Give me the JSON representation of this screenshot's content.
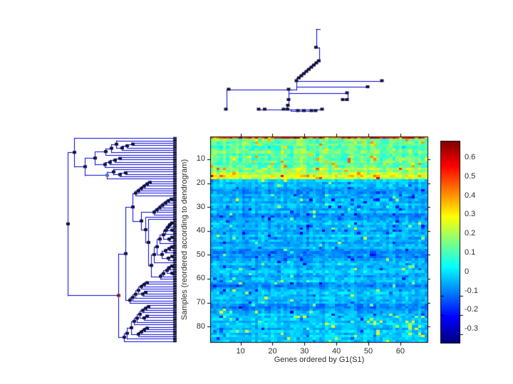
{
  "figure": {
    "background": "#ffffff"
  },
  "colors": {
    "dendro_line": "#0000dd",
    "dendro_marker": "#10103a",
    "axis": "#000000",
    "text": "#2e2e2e",
    "colorbar_top": "#7f0000",
    "colorbar_bottom": "#00008f"
  },
  "chart_data": {
    "type": "heatmap",
    "xlabel": "Genes ordered by G1(S1)",
    "ylabel": "Samples (reordered according to dendrogram)",
    "x_ticks": [
      10,
      20,
      30,
      40,
      50,
      60
    ],
    "y_ticks": [
      10,
      20,
      30,
      40,
      50,
      60,
      70,
      80
    ],
    "n_cols": 68,
    "n_rows": 86,
    "colormap": "jet",
    "value_range": [
      -0.37,
      0.69
    ],
    "colorbar_ticks": [
      0.6,
      0.5,
      0.4,
      0.3,
      0.2,
      0.1,
      0,
      -0.1,
      -0.2,
      -0.3
    ],
    "heatmap_generator": {
      "seed": 42,
      "warm_rows": 18,
      "row_means": [
        0.5,
        0.14,
        0.12,
        0.15,
        0.1,
        0.13,
        0.16,
        0.11,
        0.14,
        0.12,
        0.15,
        0.11,
        0.13,
        0.2,
        0.16,
        0.22,
        0.3,
        0.24,
        -0.02,
        -0.05,
        -0.03,
        -0.06,
        -0.09,
        -0.08,
        -0.05,
        -0.07,
        -0.04,
        -0.06,
        -0.03,
        -0.05,
        -0.08,
        -0.04,
        -0.09,
        -0.1,
        -0.07,
        -0.05,
        -0.03,
        -0.06,
        -0.04,
        -0.07,
        -0.05,
        -0.02,
        -0.06,
        -0.04,
        -0.08,
        -0.05,
        -0.03,
        -0.09,
        -0.11,
        -0.08,
        -0.1,
        -0.07,
        -0.05,
        -0.03,
        -0.06,
        -0.04,
        -0.02,
        -0.05,
        -0.07,
        -0.04,
        -0.03,
        -0.08,
        -0.1,
        -0.07,
        -0.04,
        -0.02,
        -0.05,
        -0.03,
        -0.06,
        -0.04,
        -0.09,
        -0.11,
        -0.08,
        -0.06,
        -0.03,
        -0.05,
        -0.02,
        -0.04,
        -0.01,
        -0.03,
        -0.05,
        -0.02,
        -0.04,
        -0.01,
        -0.03,
        -0.02
      ],
      "row1_sd": 0.09,
      "row_sd_warm": 0.06,
      "row_sd_cool": 0.045,
      "col_variation_warm": 0.1,
      "col_variation_cool": 0.04,
      "spike_prob_warm": 0.05,
      "spike_prob_cool": 0.02,
      "dark_prob_cool": 0.03,
      "spike_prob_bottom_right": 0.1
    },
    "dendrogram_top": {
      "segments": [
        [
          443.5,
          40.5,
          449,
          40.5
        ],
        [
          443.5,
          40.5,
          443.5,
          66.5
        ],
        [
          443.5,
          66.5,
          447.5,
          66.5
        ],
        [
          447.5,
          66.5,
          447.5,
          85.5
        ],
        [
          444,
          85.5,
          447.5,
          85.5
        ],
        [
          444,
          85.5,
          444,
          88.5
        ],
        [
          440.5,
          88.5,
          444,
          88.5
        ],
        [
          440.5,
          88.5,
          440.5,
          91.5
        ],
        [
          437,
          91.5,
          440.5,
          91.5
        ],
        [
          437,
          91.5,
          437,
          94.5
        ],
        [
          433.5,
          94.5,
          437,
          94.5
        ],
        [
          433.5,
          94.5,
          433.5,
          97.5
        ],
        [
          430,
          97.5,
          433.5,
          97.5
        ],
        [
          430,
          97.5,
          430,
          100.5
        ],
        [
          426.5,
          100.5,
          430,
          100.5
        ],
        [
          426.5,
          100.5,
          426.5,
          103.5
        ],
        [
          423,
          103.5,
          426.5,
          103.5
        ],
        [
          423,
          103.5,
          423,
          106.5
        ],
        [
          419.5,
          106.5,
          423,
          106.5
        ],
        [
          419.5,
          106.5,
          419.5,
          109.5
        ],
        [
          416,
          109.5,
          419.5,
          109.5
        ],
        [
          416,
          109.5,
          416,
          113.5
        ],
        [
          416,
          113.5,
          537,
          113.5
        ],
        [
          416,
          113.5,
          416,
          122
        ],
        [
          416,
          122,
          517,
          122
        ],
        [
          416,
          122,
          416,
          125.5
        ],
        [
          318,
          125.5,
          416,
          125.5
        ],
        [
          318,
          125.5,
          318,
          153.5
        ],
        [
          405,
          125.5,
          405,
          148
        ],
        [
          405,
          130.5,
          488,
          130.5
        ],
        [
          488,
          130.5,
          488,
          140
        ],
        [
          480,
          140,
          488,
          140
        ],
        [
          403,
          148,
          405,
          148
        ],
        [
          403,
          148,
          403,
          153.5
        ],
        [
          363,
          153.5,
          453,
          153.5
        ],
        [
          408,
          153.5,
          408,
          155.5
        ],
        [
          408,
          155.5,
          443,
          155.5
        ]
      ],
      "markers": [
        [
          443.5,
          66.5
        ],
        [
          447.5,
          85.5
        ],
        [
          444,
          88.5
        ],
        [
          440.5,
          91.5
        ],
        [
          437,
          94.5
        ],
        [
          433.5,
          97.5
        ],
        [
          430,
          100.5
        ],
        [
          426.5,
          103.5
        ],
        [
          423,
          106.5
        ],
        [
          419.5,
          109.5
        ],
        [
          416,
          113.5
        ],
        [
          536,
          113.5
        ],
        [
          516,
          122
        ],
        [
          405,
          125.5
        ],
        [
          321,
          125.5
        ],
        [
          317,
          153.5
        ],
        [
          487,
          130.5
        ],
        [
          487,
          140
        ],
        [
          481,
          140
        ],
        [
          405,
          140
        ],
        [
          404,
          148
        ],
        [
          363,
          153.5
        ],
        [
          371.5,
          153.5
        ],
        [
          398,
          153.5
        ],
        [
          403.5,
          153.5
        ],
        [
          418,
          155.5
        ],
        [
          426.5,
          155.5
        ],
        [
          437,
          155.5
        ],
        [
          443,
          155.5
        ],
        [
          452,
          153.5
        ]
      ]
    },
    "dendrogram_left": {
      "leaf_x": 244,
      "marker_colors": {
        "bb4": "#8a1a10",
        "c4": "#3a7ad0"
      },
      "merges": [
        [
          "a1",
          186,
          "L3",
          "L4"
        ],
        [
          "a2",
          178,
          "a1",
          "L5"
        ],
        [
          "a3",
          171,
          "a2",
          "L6"
        ],
        [
          "a4",
          163,
          "a3",
          "L2"
        ],
        [
          "a5",
          156,
          "a4",
          "L7"
        ],
        [
          "a6",
          148,
          "a5",
          "L8"
        ],
        [
          "b1",
          168,
          "L9",
          "L10"
        ],
        [
          "b2",
          161,
          "b1",
          "L11"
        ],
        [
          "b3",
          154,
          "b2",
          "L12"
        ],
        [
          "b4",
          147,
          "b3",
          "L13"
        ],
        [
          "c1",
          176,
          "L15",
          "L16"
        ],
        [
          "c2",
          168,
          "c1",
          "L17"
        ],
        [
          "c3",
          159,
          "c2",
          "L14"
        ],
        [
          "c4",
          150,
          "c3",
          "L18"
        ],
        [
          "a7",
          133,
          "a6",
          "b4"
        ],
        [
          "a8",
          119,
          "a7",
          "c4"
        ],
        [
          "a9",
          104,
          "a8",
          "L1"
        ],
        [
          "e1",
          210,
          "L19",
          "L20"
        ],
        [
          "e2",
          206,
          "e1",
          "L21"
        ],
        [
          "e3",
          202,
          "e2",
          "L22"
        ],
        [
          "e4",
          198,
          "e3",
          "L23"
        ],
        [
          "e5",
          194,
          "e4",
          "L24"
        ],
        [
          "e6",
          190,
          "e5",
          "L25"
        ],
        [
          "t1",
          240,
          "L26",
          "L27"
        ],
        [
          "t2",
          236,
          "t1",
          "L28"
        ],
        [
          "t3",
          232,
          "t2",
          "L29"
        ],
        [
          "t4",
          228,
          "t3",
          "L30"
        ],
        [
          "t5",
          224,
          "t4",
          "L31"
        ],
        [
          "t6",
          220,
          "t5",
          "L32"
        ],
        [
          "t7",
          216,
          "t6",
          "L33"
        ],
        [
          "d1",
          241,
          "L36",
          "L37"
        ],
        [
          "d2",
          238,
          "d1",
          "L38"
        ],
        [
          "d3",
          241,
          "L39",
          "L40"
        ],
        [
          "d4",
          235,
          "d2",
          "d3"
        ],
        [
          "d5",
          241,
          "L42",
          "L43"
        ],
        [
          "d6",
          237,
          "d5",
          "L44"
        ],
        [
          "d7",
          232,
          "d4",
          "L41"
        ],
        [
          "d8",
          229,
          "d7",
          "d6"
        ],
        [
          "d9",
          241,
          "L46",
          "L47"
        ],
        [
          "d10",
          237,
          "d9",
          "L48"
        ],
        [
          "d11",
          241,
          "L50",
          "L51"
        ],
        [
          "d12",
          236,
          "d11",
          "L52"
        ],
        [
          "d13",
          232,
          "d10",
          "L49"
        ],
        [
          "d14",
          227,
          "d13",
          "d12"
        ],
        [
          "d15",
          224,
          "d8",
          "L45"
        ],
        [
          "d16",
          220,
          "d15",
          "d14"
        ],
        [
          "d17",
          241,
          "L54",
          "L55"
        ],
        [
          "d18",
          237,
          "d17",
          "L56"
        ],
        [
          "d19",
          241,
          "L57",
          "L58"
        ],
        [
          "d20",
          234,
          "d18",
          "d19"
        ],
        [
          "d21",
          229,
          "d20",
          "L59"
        ],
        [
          "d22",
          225,
          "d21",
          "L60"
        ],
        [
          "d23",
          216,
          "d16",
          "L53"
        ],
        [
          "d24",
          212,
          "d23",
          "d22"
        ],
        [
          "d25",
          208,
          "d24",
          "L35"
        ],
        [
          "d26",
          204,
          "d25",
          "L34"
        ],
        [
          "g1",
          206,
          "L61",
          "L62"
        ],
        [
          "g2",
          202,
          "g1",
          "L63"
        ],
        [
          "g3",
          198,
          "g2",
          "L64"
        ],
        [
          "g4",
          204,
          "L65",
          "L66"
        ],
        [
          "g5",
          200,
          "g4",
          "L67"
        ],
        [
          "g6",
          194,
          "g3",
          "g5"
        ],
        [
          "g7",
          190,
          "g6",
          "L68"
        ],
        [
          "g8",
          186,
          "g7",
          "L69"
        ],
        [
          "g9",
          182,
          "g8",
          "L70"
        ],
        [
          "h1",
          208,
          "L71",
          "L72"
        ],
        [
          "h2",
          204,
          "h1",
          "L73"
        ],
        [
          "h3",
          200,
          "h2",
          "L74"
        ],
        [
          "h4",
          206,
          "L75",
          "L76"
        ],
        [
          "h5",
          202,
          "h4",
          "L77"
        ],
        [
          "h6",
          196,
          "h3",
          "h5"
        ],
        [
          "h7",
          192,
          "h6",
          "L78"
        ],
        [
          "h8",
          188,
          "h7",
          "L79"
        ],
        [
          "h9",
          206,
          "L80",
          "L81"
        ],
        [
          "h10",
          202,
          "h9",
          "L82"
        ],
        [
          "h11",
          198,
          "h10",
          "L83"
        ],
        [
          "h12",
          194,
          "h11",
          "L84"
        ],
        [
          "h13",
          184,
          "h8",
          "h12"
        ],
        [
          "h14",
          178,
          "h13",
          "L85"
        ],
        [
          "h15",
          174,
          "h14",
          "L86"
        ],
        [
          "bb1",
          198,
          "t7",
          "d26"
        ],
        [
          "bb2",
          186,
          "bb1",
          "e6"
        ],
        [
          "bb3",
          176,
          "bb2",
          "g9"
        ],
        [
          "bb4",
          166,
          "bb3",
          "h15"
        ],
        [
          "root",
          95,
          "a9",
          "bb4"
        ]
      ]
    }
  }
}
